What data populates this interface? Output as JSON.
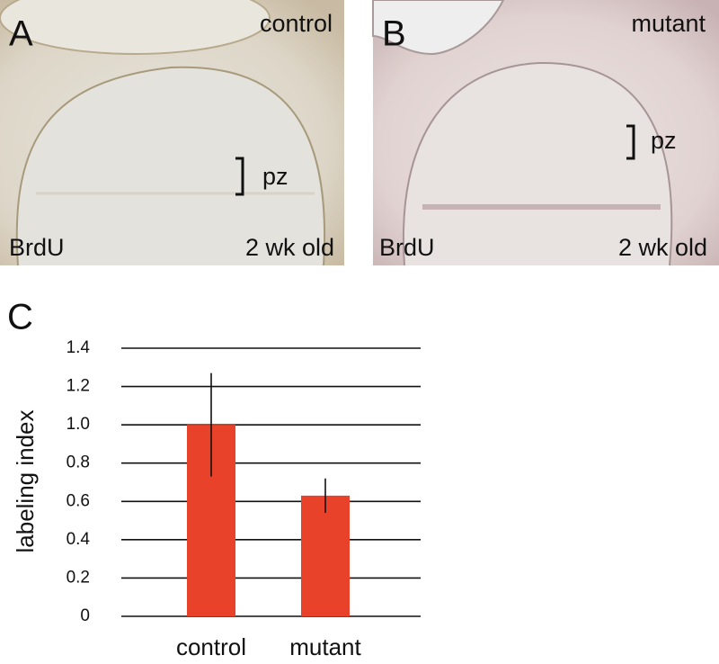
{
  "panels": [
    {
      "label": "A",
      "genotype": "control",
      "zone": "pz",
      "stain": "BrdU",
      "age": "2 wk old"
    },
    {
      "label": "B",
      "genotype": "mutant",
      "zone": "pz",
      "stain": "BrdU",
      "age": "2 wk old"
    }
  ],
  "chart_data": {
    "type": "bar",
    "panel_label": "C",
    "ylabel": "labeling index",
    "categories": [
      "control",
      "mutant"
    ],
    "values": [
      1.0,
      0.63
    ],
    "errors": [
      0.27,
      0.09
    ],
    "color": "#e8432a",
    "ylim": [
      0,
      1.4
    ],
    "yticks": [
      0,
      0.2,
      0.4,
      0.6,
      0.8,
      {
        "value": 1,
        "label": "1.0"
      },
      1.2,
      1.4
    ],
    "grid": true
  }
}
